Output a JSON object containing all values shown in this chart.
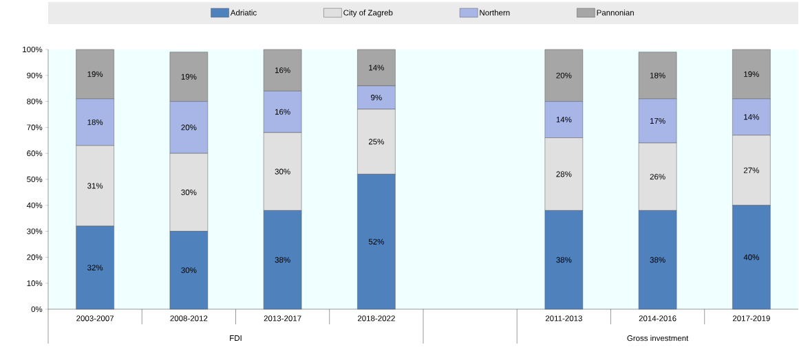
{
  "chart_data": {
    "type": "bar",
    "stacked": true,
    "legend": "top",
    "categories": [
      "2003-2007",
      "2008-2012",
      "2013-2017",
      "2018-2022",
      null,
      "2011-2013",
      "2014-2016",
      "2017-2019"
    ],
    "series": [
      {
        "name": "Adriatic",
        "color": "#4f81bd",
        "values": [
          32,
          30,
          38,
          52,
          null,
          38,
          38,
          40
        ],
        "value_labels": [
          "32%",
          "30%",
          "38%",
          "52%",
          null,
          "38%",
          "38%",
          "40%"
        ]
      },
      {
        "name": "City of Zagreb",
        "color": "#e0e0e0",
        "values": [
          31,
          30,
          30,
          25,
          null,
          28,
          26,
          27
        ],
        "value_labels": [
          "31%",
          "30%",
          "30%",
          "25%",
          null,
          "28%",
          "26%",
          "27%"
        ]
      },
      {
        "name": "Northern",
        "color": "#a7b6e6",
        "values": [
          18,
          20,
          16,
          9,
          null,
          14,
          17,
          14
        ],
        "value_labels": [
          "18%",
          "20%",
          "16%",
          "9%",
          null,
          "14%",
          "17%",
          "14%"
        ]
      },
      {
        "name": "Pannonian",
        "color": "#a6a6a6",
        "values": [
          19,
          19,
          16,
          14,
          null,
          20,
          18,
          19
        ],
        "value_labels": [
          "19%",
          "19%",
          "16%",
          "14%",
          null,
          "20%",
          "18%",
          "19%"
        ]
      }
    ],
    "ylim": [
      0,
      100
    ],
    "yticks": [
      {
        "value": 0,
        "label": "0%"
      },
      {
        "value": 10,
        "label": "10%"
      },
      {
        "value": 20,
        "label": "20%"
      },
      {
        "value": 30,
        "label": "30%"
      },
      {
        "value": 40,
        "label": "40%"
      },
      {
        "value": 50,
        "label": "50%"
      },
      {
        "value": 60,
        "label": "60%"
      },
      {
        "value": 70,
        "label": "70%"
      },
      {
        "value": 80,
        "label": "80%"
      },
      {
        "value": 90,
        "label": "90%"
      },
      {
        "value": 100,
        "label": "100%"
      }
    ],
    "annotations": [
      "FDI",
      "Gross investment"
    ]
  }
}
